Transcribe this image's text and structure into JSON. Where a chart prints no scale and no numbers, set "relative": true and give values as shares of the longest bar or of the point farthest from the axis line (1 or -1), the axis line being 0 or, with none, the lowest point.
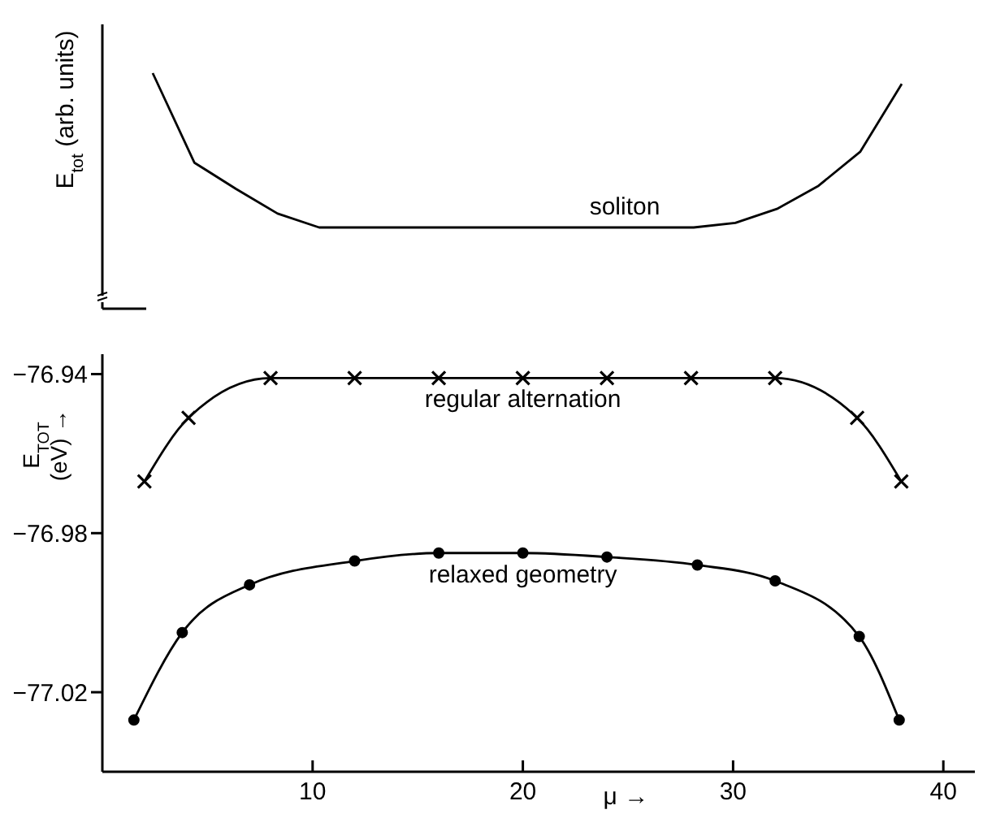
{
  "chart_data": [
    {
      "type": "line",
      "relative": true,
      "ylabel": "E$_{tot}$ (arb. units)",
      "marker": "none",
      "categories": [
        null,
        null,
        null,
        null,
        null,
        null,
        null,
        null,
        null,
        null,
        null,
        null,
        null,
        null,
        null,
        null,
        null,
        null,
        null
      ],
      "series": [
        {
          "name": "soliton",
          "color": "#000000",
          "values": [
            1.0,
            0.42,
            0.25,
            0.09,
            0,
            0,
            0,
            0,
            0,
            0,
            0,
            0,
            0,
            0,
            0.03,
            0.12,
            0.27,
            0.49,
            0.93
          ]
        }
      ]
    },
    {
      "type": "line",
      "xlabel": "μ →",
      "ylabel": "E$_{TOT}$ (eV) →",
      "xlim": [
        0,
        41.5
      ],
      "xticks": [
        10,
        20,
        30,
        40
      ],
      "ylim": [
        -77.04,
        -76.935
      ],
      "yticks": [
        -77.02,
        -76.98,
        -76.94
      ],
      "grid": false,
      "series": [
        {
          "name": "regular alternation",
          "color": "#000000",
          "marker": "cross",
          "x": [
            2.0,
            4.1,
            8,
            12,
            16,
            20,
            24,
            28,
            32,
            35.9,
            38.0
          ],
          "values": [
            -76.967,
            -76.951,
            -76.941,
            -76.941,
            -76.941,
            -76.941,
            -76.941,
            -76.941,
            -76.941,
            -76.951,
            -76.967
          ]
        },
        {
          "name": "relaxed geometry",
          "color": "#000000",
          "marker": "circle",
          "x": [
            1.5,
            3.8,
            7.0,
            12,
            16,
            20,
            24,
            28.3,
            32,
            36,
            37.9
          ],
          "values": [
            -77.027,
            -77.005,
            -76.993,
            -76.987,
            -76.985,
            -76.985,
            -76.986,
            -76.988,
            -76.992,
            -77.006,
            -77.027
          ]
        }
      ]
    }
  ]
}
